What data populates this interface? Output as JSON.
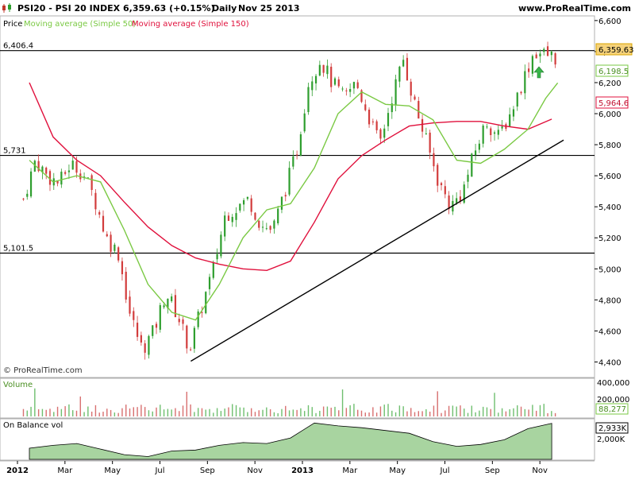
{
  "header": {
    "symbol": "PSI20 - PSI 20 INDEX",
    "last": "6,359.63 (+0.15%)",
    "period": "Daily",
    "date": "Nov 25 2013",
    "site": "www.ProRealTime.com",
    "icon": "candlestick-chart-icon"
  },
  "legend": {
    "price": "Price",
    "ma50": "Moving average (Simple 50)",
    "ma150": "Moving average (Simple 150)"
  },
  "watermark": "© ProRealTime.com",
  "colors": {
    "up": "#2e9e2e",
    "down": "#d23c3c",
    "ma50": "#7ac943",
    "ma150": "#e0103c",
    "obv_fill": "#a8d4a0",
    "line": "#000000",
    "arrow": "#39b54a"
  },
  "price_tags": {
    "last": "6,359.63",
    "ma50": "6,198.5",
    "ma150": "5,964.6"
  },
  "volume_panel": {
    "label": "Volume",
    "ticks": [
      "400,000",
      "200,000"
    ],
    "last": "88,277"
  },
  "obv_panel": {
    "label": "On Balance vol",
    "ticks": [
      "2,933K",
      "2,000K"
    ]
  },
  "annotations": {
    "arrow": "up-arrow-icon"
  },
  "chart_data": {
    "type": "candlestick",
    "x_labels": [
      "2012",
      "Mar",
      "May",
      "Jul",
      "Sep",
      "Nov",
      "2013",
      "Mar",
      "May",
      "Jul",
      "Sep",
      "Nov"
    ],
    "y_ticks": [
      4400,
      4600,
      4800,
      5000,
      5200,
      5400,
      5600,
      5800,
      6000,
      6200,
      6400,
      6600
    ],
    "y_tick_labels": [
      "4,400",
      "4,600",
      "4,800",
      "5,000",
      "5,200",
      "5,400",
      "5,600",
      "5,800",
      "6,000",
      "6,200",
      "6,400",
      "6,600"
    ],
    "ylim": [
      4300,
      6630
    ],
    "horizontal_levels": [
      {
        "value": 6406.4,
        "label": "6,406.4"
      },
      {
        "value": 5731,
        "label": "5,731"
      },
      {
        "value": 5101.5,
        "label": "5,101.5"
      }
    ],
    "trendline": {
      "from": {
        "x": "Aug 2012",
        "y": 4405
      },
      "to": {
        "x": "Dec 2013",
        "y": 5830
      }
    },
    "close_path": [
      {
        "x": "Jan 2012",
        "y": 5450
      },
      {
        "x": "Jan 2012",
        "y": 5700
      },
      {
        "x": "Feb 2012",
        "y": 5600
      },
      {
        "x": "Feb 2012",
        "y": 5550
      },
      {
        "x": "Mar 2012",
        "y": 5680
      },
      {
        "x": "Mar 2012",
        "y": 5620
      },
      {
        "x": "Apr 2012",
        "y": 5450
      },
      {
        "x": "Apr 2012",
        "y": 5200
      },
      {
        "x": "May 2012",
        "y": 5100
      },
      {
        "x": "May 2012",
        "y": 4700
      },
      {
        "x": "Jun 2012",
        "y": 4480
      },
      {
        "x": "Jun 2012",
        "y": 4600
      },
      {
        "x": "Jul 2012",
        "y": 4850
      },
      {
        "x": "Jul 2012",
        "y": 4700
      },
      {
        "x": "Aug 2012",
        "y": 4480
      },
      {
        "x": "Aug 2012",
        "y": 4750
      },
      {
        "x": "Sep 2012",
        "y": 5000
      },
      {
        "x": "Sep 2012",
        "y": 5350
      },
      {
        "x": "Oct 2012",
        "y": 5400
      },
      {
        "x": "Oct 2012",
        "y": 5450
      },
      {
        "x": "Nov 2012",
        "y": 5280
      },
      {
        "x": "Nov 2012",
        "y": 5250
      },
      {
        "x": "Dec 2012",
        "y": 5500
      },
      {
        "x": "Dec 2012",
        "y": 5750
      },
      {
        "x": "Jan 2013",
        "y": 6200
      },
      {
        "x": "Jan 2013",
        "y": 6350
      },
      {
        "x": "Feb 2013",
        "y": 6200
      },
      {
        "x": "Feb 2013",
        "y": 6100
      },
      {
        "x": "Mar 2013",
        "y": 6200
      },
      {
        "x": "Mar 2013",
        "y": 6000
      },
      {
        "x": "Apr 2013",
        "y": 5800
      },
      {
        "x": "Apr 2013",
        "y": 6100
      },
      {
        "x": "May 2013",
        "y": 6350
      },
      {
        "x": "May 2013",
        "y": 6050
      },
      {
        "x": "Jun 2013",
        "y": 5800
      },
      {
        "x": "Jun 2013",
        "y": 5550
      },
      {
        "x": "Jul 2013",
        "y": 5400
      },
      {
        "x": "Jul 2013",
        "y": 5500
      },
      {
        "x": "Aug 2013",
        "y": 5750
      },
      {
        "x": "Aug 2013",
        "y": 5950
      },
      {
        "x": "Sep 2013",
        "y": 5850
      },
      {
        "x": "Sep 2013",
        "y": 6000
      },
      {
        "x": "Oct 2013",
        "y": 6200
      },
      {
        "x": "Oct 2013",
        "y": 6400
      },
      {
        "x": "Nov 2013",
        "y": 6380
      },
      {
        "x": "Nov 2013",
        "y": 6360
      }
    ],
    "ma50": [
      {
        "x": "Jan 2012",
        "y": 5700
      },
      {
        "x": "Feb 2012",
        "y": 5560
      },
      {
        "x": "Mar 2012",
        "y": 5600
      },
      {
        "x": "Apr 2012",
        "y": 5560
      },
      {
        "x": "May 2012",
        "y": 5250
      },
      {
        "x": "Jun 2012",
        "y": 4900
      },
      {
        "x": "Jul 2012",
        "y": 4720
      },
      {
        "x": "Aug 2012",
        "y": 4670
      },
      {
        "x": "Sep 2012",
        "y": 4900
      },
      {
        "x": "Oct 2012",
        "y": 5200
      },
      {
        "x": "Nov 2012",
        "y": 5380
      },
      {
        "x": "Dec 2012",
        "y": 5420
      },
      {
        "x": "Jan 2013",
        "y": 5650
      },
      {
        "x": "Feb 2013",
        "y": 6000
      },
      {
        "x": "Mar 2013",
        "y": 6140
      },
      {
        "x": "Apr 2013",
        "y": 6060
      },
      {
        "x": "May 2013",
        "y": 6050
      },
      {
        "x": "Jun 2013",
        "y": 5960
      },
      {
        "x": "Jul 2013",
        "y": 5700
      },
      {
        "x": "Aug 2013",
        "y": 5680
      },
      {
        "x": "Sep 2013",
        "y": 5770
      },
      {
        "x": "Oct 2013",
        "y": 5900
      },
      {
        "x": "Nov 2013",
        "y": 6100
      },
      {
        "x": "Nov 2013",
        "y": 6198.5
      }
    ],
    "ma150": [
      {
        "x": "Jan 2012",
        "y": 6200
      },
      {
        "x": "Feb 2012",
        "y": 5850
      },
      {
        "x": "Mar 2012",
        "y": 5700
      },
      {
        "x": "Apr 2012",
        "y": 5600
      },
      {
        "x": "May 2012",
        "y": 5430
      },
      {
        "x": "Jun 2012",
        "y": 5270
      },
      {
        "x": "Jul 2012",
        "y": 5150
      },
      {
        "x": "Aug 2012",
        "y": 5070
      },
      {
        "x": "Sep 2012",
        "y": 5030
      },
      {
        "x": "Oct 2012",
        "y": 5000
      },
      {
        "x": "Nov 2012",
        "y": 4990
      },
      {
        "x": "Dec 2012",
        "y": 5050
      },
      {
        "x": "Jan 2013",
        "y": 5300
      },
      {
        "x": "Feb 2013",
        "y": 5580
      },
      {
        "x": "Mar 2013",
        "y": 5730
      },
      {
        "x": "Apr 2013",
        "y": 5830
      },
      {
        "x": "May 2013",
        "y": 5920
      },
      {
        "x": "Jun 2013",
        "y": 5940
      },
      {
        "x": "Jul 2013",
        "y": 5950
      },
      {
        "x": "Aug 2013",
        "y": 5950
      },
      {
        "x": "Sep 2013",
        "y": 5920
      },
      {
        "x": "Oct 2013",
        "y": 5900
      },
      {
        "x": "Nov 2013",
        "y": 5964.6
      }
    ],
    "obv_path": [
      {
        "x": "Jan 2012",
        "y": 1600
      },
      {
        "x": "Feb 2012",
        "y": 1750
      },
      {
        "x": "Mar 2012",
        "y": 1850
      },
      {
        "x": "Apr 2012",
        "y": 1550
      },
      {
        "x": "May 2012",
        "y": 1250
      },
      {
        "x": "Jun 2012",
        "y": 1150
      },
      {
        "x": "Jul 2012",
        "y": 1450
      },
      {
        "x": "Aug 2012",
        "y": 1500
      },
      {
        "x": "Sep 2012",
        "y": 1750
      },
      {
        "x": "Oct 2012",
        "y": 1900
      },
      {
        "x": "Nov 2012",
        "y": 1850
      },
      {
        "x": "Dec 2012",
        "y": 2150
      },
      {
        "x": "Jan 2013",
        "y": 2950
      },
      {
        "x": "Feb 2013",
        "y": 2800
      },
      {
        "x": "Mar 2013",
        "y": 2700
      },
      {
        "x": "Apr 2013",
        "y": 2550
      },
      {
        "x": "May 2013",
        "y": 2400
      },
      {
        "x": "Jun 2013",
        "y": 1950
      },
      {
        "x": "Jul 2013",
        "y": 1700
      },
      {
        "x": "Aug 2013",
        "y": 1800
      },
      {
        "x": "Sep 2013",
        "y": 2050
      },
      {
        "x": "Oct 2013",
        "y": 2650
      },
      {
        "x": "Nov 2013",
        "y": 2933
      }
    ]
  }
}
